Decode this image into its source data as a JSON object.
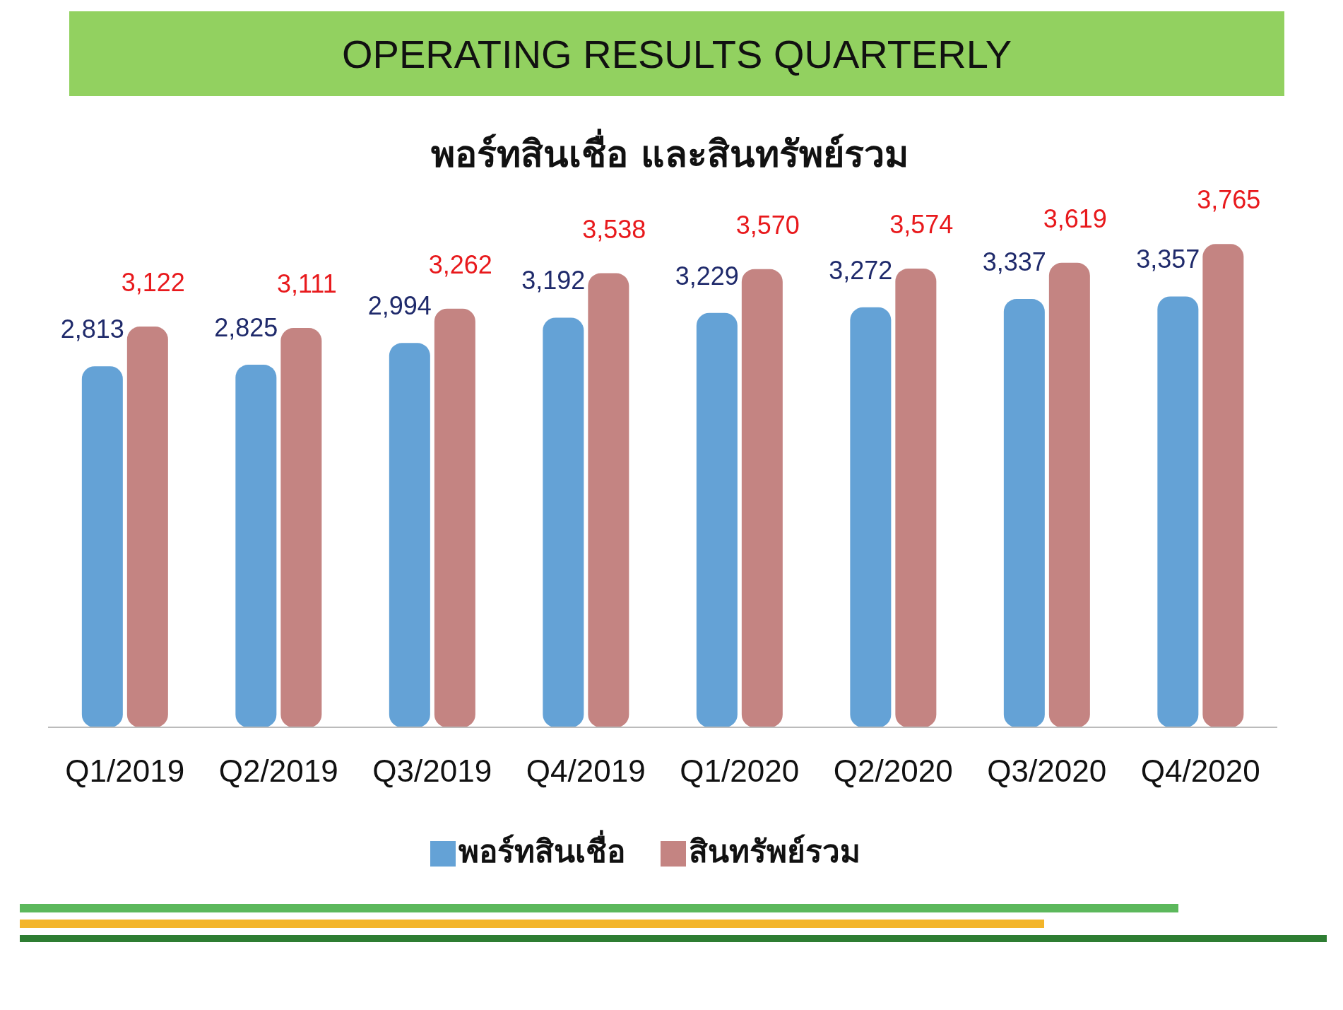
{
  "chart_data": {
    "type": "bar",
    "title": "OPERATING RESULTS QUARTERLY",
    "subtitle": "พอร์ทสินเชื่อ และสินทรัพย์รวม",
    "categories": [
      "Q1/2019",
      "Q2/2019",
      "Q3/2019",
      "Q4/2019",
      "Q1/2020",
      "Q2/2020",
      "Q3/2020",
      "Q4/2020"
    ],
    "series": [
      {
        "name": "พอร์ทสินเชื่อ",
        "color": "#64a2d6",
        "values": [
          2813,
          2825,
          2994,
          3192,
          3229,
          3272,
          3337,
          3357
        ],
        "value_labels": [
          "2,813",
          "2,825",
          "2,994",
          "3,192",
          "3,229",
          "3,272",
          "3,337",
          "3,357"
        ]
      },
      {
        "name": "สินทรัพย์รวม",
        "color": "#c48482",
        "values": [
          3122,
          3111,
          3262,
          3538,
          3570,
          3574,
          3619,
          3765
        ],
        "value_labels": [
          "3,122",
          "3,111",
          "3,262",
          "3,538",
          "3,570",
          "3,574",
          "3,619",
          "3,765"
        ]
      }
    ],
    "legend": "bottom",
    "grid": false
  }
}
